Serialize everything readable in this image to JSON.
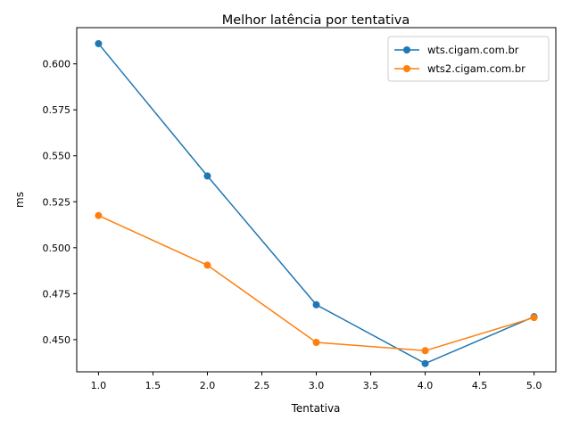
{
  "chart_data": {
    "type": "line",
    "title": "Melhor latência por tentativa",
    "xlabel": "Tentativa",
    "ylabel": "ms",
    "xlim": [
      0.8,
      5.2
    ],
    "ylim": [
      0.4325,
      0.6197
    ],
    "x_ticks": [
      1.0,
      1.5,
      2.0,
      2.5,
      3.0,
      3.5,
      4.0,
      4.5,
      5.0
    ],
    "x_tick_labels": [
      "1.0",
      "1.5",
      "2.0",
      "2.5",
      "3.0",
      "3.5",
      "4.0",
      "4.5",
      "5.0"
    ],
    "y_ticks": [
      0.45,
      0.475,
      0.5,
      0.525,
      0.55,
      0.575,
      0.6
    ],
    "y_tick_labels": [
      "0.450",
      "0.475",
      "0.500",
      "0.525",
      "0.550",
      "0.575",
      "0.600"
    ],
    "grid": false,
    "legend_position": "top-right",
    "x": [
      1,
      2,
      3,
      4,
      5
    ],
    "series": [
      {
        "name": "wts.cigam.com.br",
        "color": "#1f77b4",
        "values": [
          0.611,
          0.539,
          0.469,
          0.437,
          0.4625
        ]
      },
      {
        "name": "wts2.cigam.com.br",
        "color": "#ff7f0e",
        "values": [
          0.5175,
          0.4905,
          0.4485,
          0.444,
          0.462
        ]
      }
    ]
  }
}
